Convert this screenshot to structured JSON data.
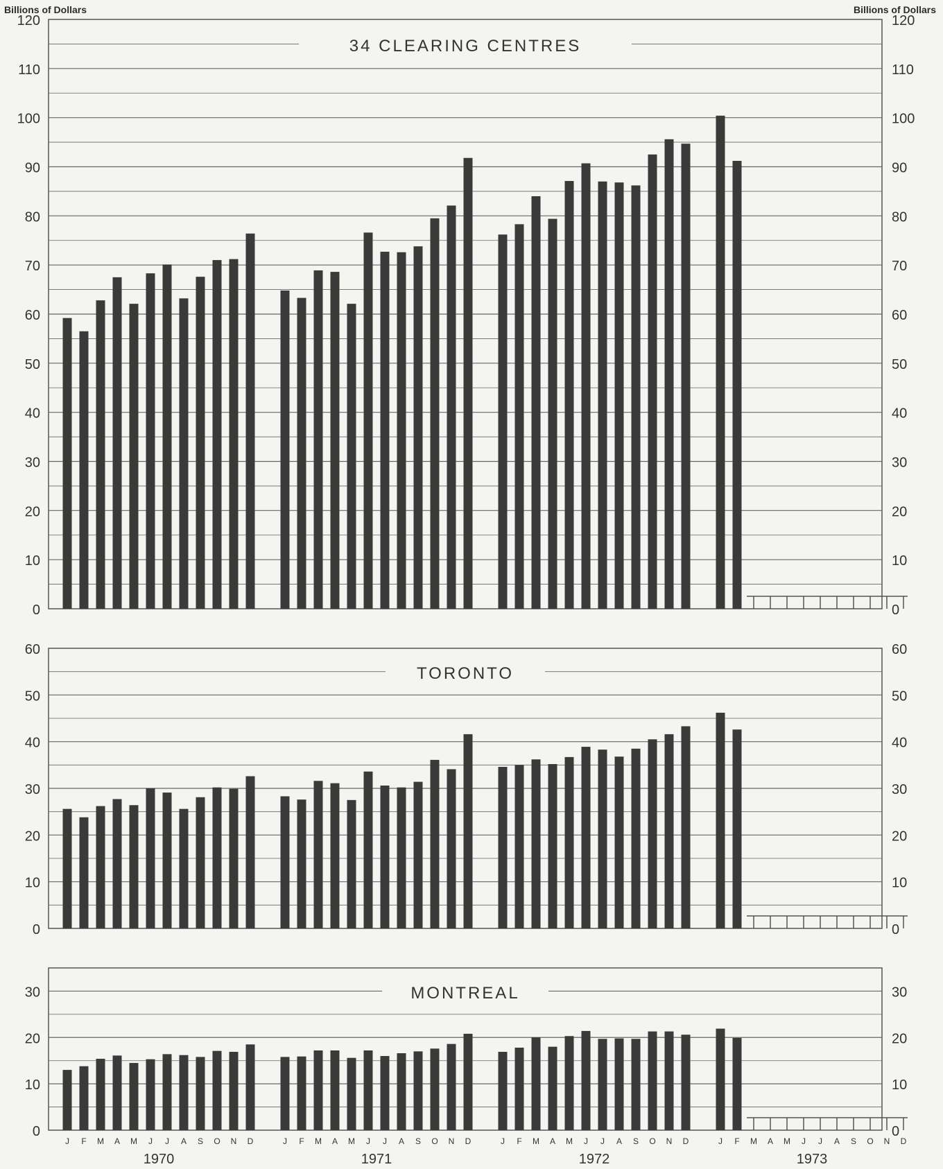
{
  "y_unit_left": "Billions of Dollars",
  "y_unit_right": "Billions of Dollars",
  "months": [
    "J",
    "F",
    "M",
    "A",
    "M",
    "J",
    "J",
    "A",
    "S",
    "O",
    "N",
    "D"
  ],
  "years": [
    "1970",
    "1971",
    "1972",
    "1973"
  ],
  "chart_data": [
    {
      "type": "bar",
      "title": "34 CLEARING CENTRES",
      "ylim": [
        0,
        120
      ],
      "yticks": [
        0,
        10,
        20,
        30,
        40,
        50,
        60,
        70,
        80,
        90,
        100,
        110,
        120
      ],
      "series": [
        {
          "values": [
            59.2,
            56.5,
            62.8,
            67.5,
            62.1,
            68.3,
            70.1,
            63.2,
            67.6,
            71.0,
            71.2,
            76.4,
            64.8,
            63.3,
            68.9,
            68.6,
            62.1,
            76.6,
            72.7,
            72.6,
            73.8,
            79.5,
            82.1,
            91.8,
            76.2,
            78.3,
            84.0,
            79.4,
            87.1,
            90.7,
            87.0,
            86.8,
            86.2,
            92.5,
            95.6,
            94.7,
            100.4,
            91.2,
            0,
            0,
            0,
            0,
            0,
            0,
            0,
            0,
            0,
            0
          ]
        }
      ]
    },
    {
      "type": "bar",
      "title": "TORONTO",
      "ylim": [
        0,
        60
      ],
      "yticks": [
        0,
        10,
        20,
        30,
        40,
        50,
        60
      ],
      "series": [
        {
          "values": [
            25.6,
            23.8,
            26.2,
            27.7,
            26.4,
            30.0,
            29.1,
            25.6,
            28.1,
            30.2,
            29.9,
            32.6,
            28.3,
            27.6,
            31.6,
            31.1,
            27.5,
            33.6,
            30.6,
            30.2,
            31.4,
            36.1,
            34.1,
            41.6,
            34.6,
            35.0,
            36.2,
            35.2,
            36.7,
            38.9,
            38.3,
            36.8,
            38.5,
            40.5,
            41.6,
            43.3,
            46.2,
            42.6,
            0,
            0,
            0,
            0,
            0,
            0,
            0,
            0,
            0,
            0
          ]
        }
      ]
    },
    {
      "type": "bar",
      "title": "MONTREAL",
      "ylim": [
        0,
        35
      ],
      "yticks": [
        0,
        10,
        20,
        30
      ],
      "series": [
        {
          "values": [
            13.0,
            13.8,
            15.4,
            16.1,
            14.5,
            15.3,
            16.4,
            16.2,
            15.8,
            17.1,
            16.9,
            18.5,
            15.8,
            15.9,
            17.2,
            17.2,
            15.6,
            17.2,
            16.0,
            16.6,
            17.0,
            17.6,
            18.6,
            20.8,
            16.9,
            17.8,
            20.0,
            18.0,
            20.3,
            21.4,
            19.7,
            19.8,
            19.7,
            21.3,
            21.3,
            20.6,
            21.9,
            19.9,
            0,
            0,
            0,
            0,
            0,
            0,
            0,
            0,
            0,
            0
          ]
        }
      ]
    }
  ]
}
